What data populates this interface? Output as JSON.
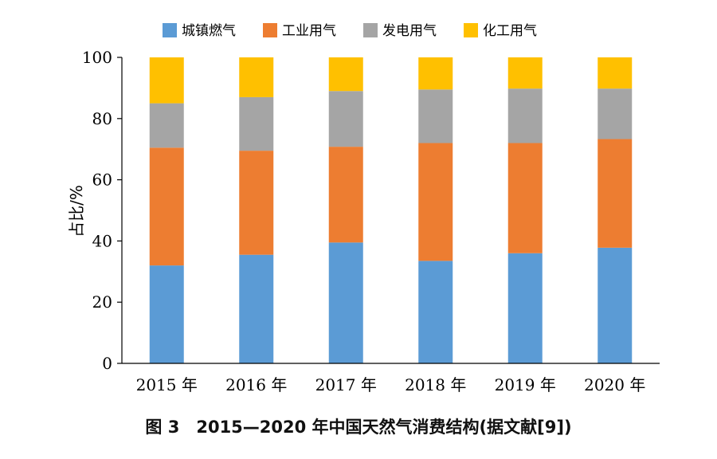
{
  "caption": "图 3　2015—2020 年中国天然气消费结构(据文献[9])",
  "colors": {
    "城镇燃气": "#5b9bd5",
    "工业用气": "#ed7d31",
    "发电用气": "#a5a5a5",
    "化工用气": "#ffc000"
  },
  "chart_data": {
    "type": "bar",
    "stacked": true,
    "categories": [
      "2015 年",
      "2016 年",
      "2017 年",
      "2018 年",
      "2019 年",
      "2020 年"
    ],
    "series": [
      {
        "name": "城镇燃气",
        "values": [
          32,
          35.5,
          39.5,
          33.5,
          36,
          37.8
        ]
      },
      {
        "name": "工业用气",
        "values": [
          38.5,
          34,
          31.3,
          38.5,
          36,
          35.5
        ]
      },
      {
        "name": "发电用气",
        "values": [
          14.5,
          17.5,
          18.2,
          17.5,
          17.8,
          16.5
        ]
      },
      {
        "name": "化工用气",
        "values": [
          15,
          13,
          11,
          10.5,
          10.2,
          10.2
        ]
      }
    ],
    "ylabel": "占比/%",
    "xlabel": "",
    "ylim": [
      0,
      100
    ],
    "yticks": [
      0,
      20,
      40,
      60,
      80,
      100
    ],
    "grid": false,
    "legend": "top"
  }
}
